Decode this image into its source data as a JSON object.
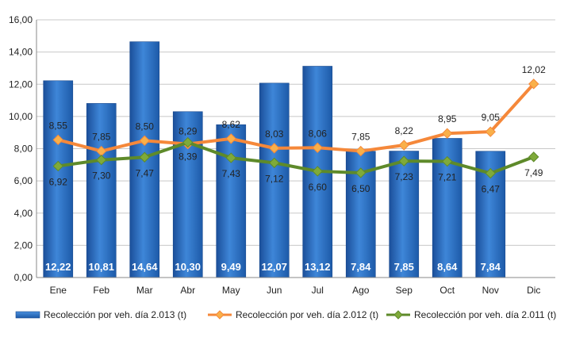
{
  "chart_data": {
    "type": "bar",
    "categories": [
      "Ene",
      "Feb",
      "Mar",
      "Abr",
      "May",
      "Jun",
      "Jul",
      "Ago",
      "Sep",
      "Oct",
      "Nov",
      "Dic"
    ],
    "ylim": [
      0,
      16
    ],
    "yticks": [
      "0,00",
      "2,00",
      "4,00",
      "6,00",
      "8,00",
      "10,00",
      "12,00",
      "14,00",
      "16,00"
    ],
    "grid": true,
    "legend_position": "bottom",
    "series": [
      {
        "name": "Recolección por veh. día 2.013 (t)",
        "kind": "bar",
        "color": "#2f74c8",
        "values": [
          12.22,
          10.81,
          14.64,
          10.3,
          9.49,
          12.07,
          13.12,
          7.84,
          7.85,
          8.64,
          7.84,
          null
        ],
        "labels": [
          "12,22",
          "10,81",
          "14,64",
          "10,30",
          "9,49",
          "12,07",
          "13,12",
          "7,84",
          "7,85",
          "8,64",
          "7,84",
          ""
        ]
      },
      {
        "name": "Recolección por veh. día 2.012 (t)",
        "kind": "line",
        "color": "#f5883a",
        "marker_color": "#f9b04a",
        "values": [
          8.55,
          7.85,
          8.5,
          8.29,
          8.62,
          8.03,
          8.06,
          7.85,
          8.22,
          8.95,
          9.05,
          12.02
        ],
        "labels": [
          "8,55",
          "7,85",
          "8,50",
          "8,29",
          "8,62",
          "8,03",
          "8,06",
          "7,85",
          "8,22",
          "8,95",
          "9,05",
          "12,02"
        ]
      },
      {
        "name": "Recolección por veh. día 2.011 (t)",
        "kind": "line",
        "color": "#5e8a2a",
        "marker_color": "#7faa3a",
        "values": [
          6.92,
          7.3,
          7.47,
          8.39,
          7.43,
          7.12,
          6.6,
          6.5,
          7.23,
          7.21,
          6.47,
          7.49
        ],
        "labels": [
          "6,92",
          "7,30",
          "7,47",
          "8,39",
          "7,43",
          "7,12",
          "6,60",
          "6,50",
          "7,23",
          "7,21",
          "6,47",
          "7,49"
        ]
      }
    ]
  }
}
